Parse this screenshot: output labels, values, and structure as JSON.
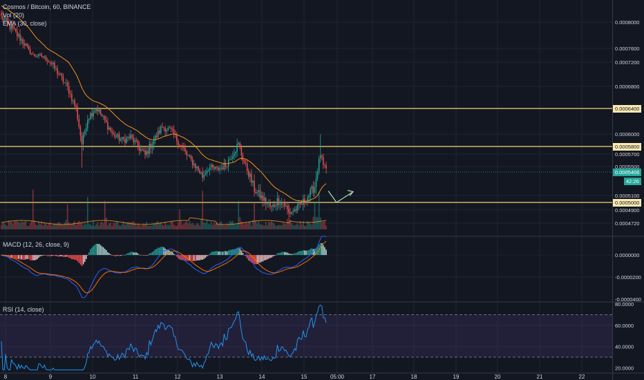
{
  "header": {
    "symbol_line": "Cosmos / Bitcoin, 60, BINANCE",
    "vol_label": "Vol (20)",
    "ema_label": "EMA (30, close)"
  },
  "macd_label": "MACD (12, 26, close, 9)",
  "rsi_label": "RSI (14, close)",
  "colors": {
    "background": "#131722",
    "grid": "#1f2433",
    "up": "#26a69a",
    "down": "#ef5350",
    "ema": "#f7931a",
    "hline": "#f5d76e",
    "macd_line": "#2962ff",
    "signal_line": "#ff6d00",
    "rsi_line": "#2196f3",
    "rsi_band": "#7e57c2",
    "arrow": "#a5d6a7",
    "current_price_bg": "#26a69a"
  },
  "chart_data": [
    {
      "id": "price",
      "type": "candlestick",
      "x_labels": [
        "8",
        "9",
        "10",
        "11",
        "12",
        "13",
        "14",
        "15",
        "05:00",
        "17",
        "18",
        "19",
        "20",
        "21",
        "22"
      ],
      "y_ticks": [
        "0.0008000",
        "0.0007600",
        "0.0007200",
        "0.0006800",
        "0.0006000",
        "0.0005700",
        "0.0005500",
        "0.0005100",
        "0.0004900",
        "0.0004720"
      ],
      "y_tick_values": [
        0.0008,
        0.00076,
        0.00072,
        0.00068,
        0.0006,
        0.00057,
        0.00055,
        0.00051,
        0.00049,
        0.000472
      ],
      "ylim": [
        0.000465,
        0.000823
      ],
      "horizontal_lines": [
        {
          "label": "0.0006400",
          "value": 0.00064
        },
        {
          "label": "0.0005800",
          "value": 0.00058
        },
        {
          "label": "0.0005000",
          "value": 0.0005
        }
      ],
      "current_price": {
        "label": "0.0005406",
        "value": 0.0005406
      },
      "countdown": "42:26",
      "anchors": [
        [
          0,
          0.000808
        ],
        [
          8,
          0.000788
        ],
        [
          16,
          0.000768
        ],
        [
          22,
          0.00074
        ],
        [
          28,
          0.000738
        ],
        [
          34,
          0.00072
        ],
        [
          40,
          0.0007
        ],
        [
          46,
          0.000678
        ],
        [
          52,
          0.00064
        ],
        [
          56,
          0.000585
        ],
        [
          60,
          0.000625
        ],
        [
          66,
          0.000642
        ],
        [
          72,
          0.00062
        ],
        [
          78,
          0.000598
        ],
        [
          84,
          0.00059
        ],
        [
          90,
          0.000595
        ],
        [
          96,
          0.000578
        ],
        [
          100,
          0.000568
        ],
        [
          106,
          0.00059
        ],
        [
          112,
          0.000612
        ],
        [
          118,
          0.000605
        ],
        [
          124,
          0.000585
        ],
        [
          130,
          0.000565
        ],
        [
          136,
          0.000548
        ],
        [
          140,
          0.000535
        ],
        [
          144,
          0.000548
        ],
        [
          150,
          0.000545
        ],
        [
          156,
          0.000552
        ],
        [
          162,
          0.000575
        ],
        [
          165,
          0.000583
        ],
        [
          170,
          0.00055
        ],
        [
          176,
          0.000518
        ],
        [
          182,
          0.000505
        ],
        [
          188,
          0.000492
        ],
        [
          192,
          0.000503
        ],
        [
          196,
          0.0005
        ],
        [
          200,
          0.000486
        ],
        [
          206,
          0.000492
        ],
        [
          212,
          0.000505
        ],
        [
          218,
          0.000522
        ],
        [
          222,
          0.00057
        ],
        [
          224,
          0.00055
        ],
        [
          226,
          0.000543
        ]
      ],
      "volume_spikes": [
        [
          22,
          3.2
        ],
        [
          46,
          2.0
        ],
        [
          60,
          2.6
        ],
        [
          72,
          2.3
        ],
        [
          124,
          1.6
        ],
        [
          140,
          3.1
        ],
        [
          165,
          2.3
        ],
        [
          176,
          2.2
        ],
        [
          200,
          1.9
        ],
        [
          218,
          2.2
        ],
        [
          221,
          3.0
        ]
      ]
    },
    {
      "id": "macd",
      "type": "line+histogram",
      "series": [
        {
          "name": "MACD",
          "color": "#2962ff"
        },
        {
          "name": "Signal",
          "color": "#ff6d00"
        }
      ],
      "y_ticks": [
        "0.0000000",
        "-0.0000200",
        "-0.0000400"
      ],
      "y_tick_values": [
        0,
        -2e-05,
        -4e-05
      ],
      "ylim": [
        -4.2e-05,
        1.2e-05
      ]
    },
    {
      "id": "rsi",
      "type": "line",
      "y_ticks": [
        "80.0000",
        "60.0000",
        "40.0000",
        "20.0000"
      ],
      "y_tick_values": [
        80,
        60,
        40,
        20
      ],
      "ylim": [
        15,
        82
      ],
      "band": [
        30,
        70
      ]
    }
  ]
}
